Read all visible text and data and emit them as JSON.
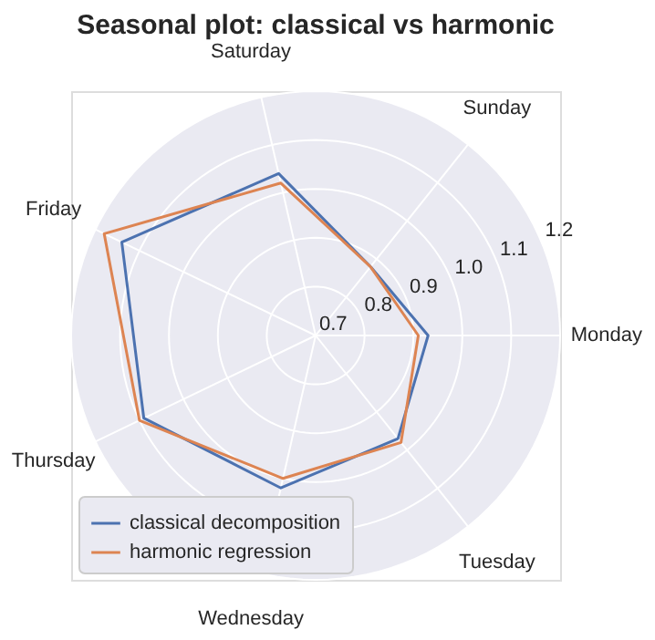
{
  "chart_data": {
    "type": "radar",
    "title": "Seasonal plot: classical vs harmonic",
    "categories": [
      "Sunday",
      "Monday",
      "Tuesday",
      "Wednesday",
      "Thursday",
      "Friday",
      "Saturday"
    ],
    "series": [
      {
        "name": "classical decomposition",
        "color": "#4c72b0",
        "values": [
          0.88,
          0.93,
          0.97,
          1.02,
          1.09,
          1.14,
          1.04
        ]
      },
      {
        "name": "harmonic regression",
        "color": "#dd8452",
        "values": [
          0.88,
          0.91,
          0.98,
          1.0,
          1.1,
          1.18,
          1.02
        ]
      }
    ],
    "ylim": [
      0.7,
      1.2
    ],
    "yticks": [
      0.7,
      0.8,
      0.9,
      {
        "value": 1.0,
        "label": "1.0"
      },
      1.1,
      1.2
    ],
    "grid": true,
    "legend": "bottom left"
  }
}
